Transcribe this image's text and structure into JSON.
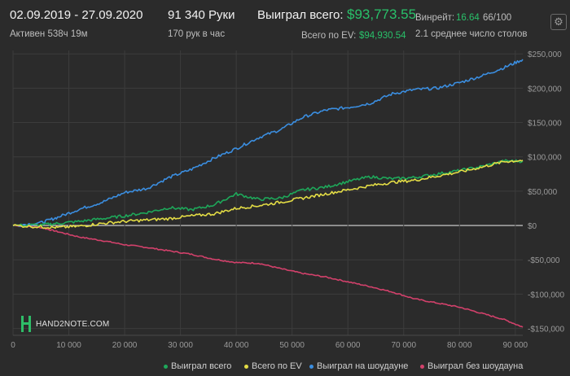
{
  "header": {
    "date_range": "02.09.2019 - 27.09.2020",
    "active_label": "Активен 538ч 19м",
    "hands_label": "91 340 Руки",
    "hands_per_hour": "170 рук в час",
    "won_total_label": "Выиграл всего:",
    "won_total_value": "$93,773.55",
    "ev_total_label": "Всего по EV:",
    "ev_total_value": "$94,930.54",
    "winrate_label": "Винрейт:",
    "winrate_value": "16.64",
    "winrate_suffix": "66/100",
    "tables_label": "2.1 среднее число столов"
  },
  "logo_text": "HAND2NOTE.COM",
  "icons": {
    "settings": "gear-icon"
  },
  "colors": {
    "won_total": "#1ea85a",
    "ev_total": "#e3dc45",
    "showdown": "#3b8ee0",
    "non_showdown": "#d2416b",
    "zero": "#d8d8d8"
  },
  "chart_data": {
    "type": "line",
    "xlim": [
      0,
      91340
    ],
    "ylim": [
      -160000,
      255000
    ],
    "x_ticks": [
      0,
      10000,
      20000,
      30000,
      40000,
      50000,
      60000,
      70000,
      80000,
      90000
    ],
    "x_tick_labels": [
      "0",
      "10 000",
      "20 000",
      "30 000",
      "40 000",
      "50 000",
      "60 000",
      "70 000",
      "80 000",
      "90 000"
    ],
    "y_ticks": [
      250000,
      200000,
      150000,
      100000,
      50000,
      0,
      -50000,
      -100000,
      -150000
    ],
    "y_tick_labels": [
      "$250,000",
      "$200,000",
      "$150,000",
      "$100,000",
      "$50,000",
      "$0",
      "-$50,000",
      "-$100,000",
      "-$150,000"
    ],
    "grid": true,
    "legend_position": "bottom",
    "series": [
      {
        "name": "Выиграл всего",
        "color": "#1ea85a",
        "x": [
          0,
          5000,
          8000,
          12000,
          16000,
          20000,
          24000,
          28000,
          32000,
          36000,
          40000,
          44000,
          48000,
          52000,
          56000,
          60000,
          64000,
          68000,
          72000,
          76000,
          80000,
          84000,
          88000,
          91340
        ],
        "y": [
          0,
          1000,
          3000,
          6000,
          10000,
          14000,
          19000,
          26000,
          23000,
          30000,
          46000,
          38000,
          40000,
          52000,
          56000,
          64000,
          71000,
          68000,
          70000,
          75000,
          80000,
          86000,
          94000,
          93773
        ]
      },
      {
        "name": "Всего по EV",
        "color": "#e3dc45",
        "x": [
          0,
          5000,
          8000,
          12000,
          16000,
          20000,
          24000,
          28000,
          32000,
          36000,
          40000,
          44000,
          48000,
          52000,
          56000,
          60000,
          64000,
          68000,
          72000,
          76000,
          80000,
          84000,
          88000,
          91340
        ],
        "y": [
          0,
          -2000,
          -3000,
          -1000,
          3000,
          6000,
          8000,
          10000,
          14000,
          17000,
          25000,
          29000,
          34000,
          40000,
          46000,
          52000,
          58000,
          63000,
          66000,
          72000,
          78000,
          85000,
          93000,
          94930
        ]
      },
      {
        "name": "Выиграл на шоудауне",
        "color": "#3b8ee0",
        "x": [
          0,
          5000,
          8000,
          12000,
          16000,
          20000,
          24000,
          28000,
          32000,
          36000,
          40000,
          44000,
          48000,
          52000,
          56000,
          60000,
          64000,
          68000,
          72000,
          76000,
          80000,
          84000,
          88000,
          91340
        ],
        "y": [
          0,
          4000,
          12000,
          24000,
          34000,
          48000,
          54000,
          70000,
          82000,
          98000,
          112000,
          128000,
          140000,
          158000,
          168000,
          172000,
          178000,
          192000,
          198000,
          200000,
          208000,
          218000,
          230000,
          242000
        ]
      },
      {
        "name": "Выиграл без шоудауна",
        "color": "#d2416b",
        "x": [
          0,
          5000,
          8000,
          12000,
          16000,
          20000,
          24000,
          28000,
          32000,
          36000,
          40000,
          44000,
          48000,
          52000,
          56000,
          60000,
          64000,
          68000,
          72000,
          76000,
          80000,
          84000,
          88000,
          91340
        ],
        "y": [
          0,
          -3000,
          -9000,
          -17000,
          -22000,
          -28000,
          -32000,
          -37000,
          -42000,
          -49000,
          -54000,
          -55000,
          -63000,
          -70000,
          -75000,
          -82000,
          -89000,
          -97000,
          -107000,
          -113000,
          -119000,
          -128000,
          -137000,
          -148000
        ]
      }
    ]
  }
}
